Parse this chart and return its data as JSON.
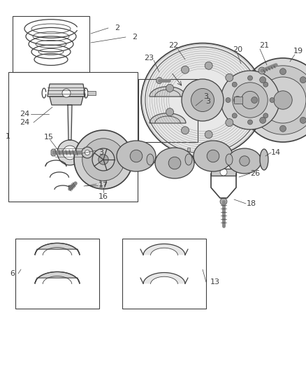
{
  "background_color": "#ffffff",
  "line_color": "#404040",
  "label_color": "#404040",
  "figsize": [
    4.38,
    5.33
  ],
  "dpi": 100,
  "fig_width": 438,
  "fig_height": 533
}
